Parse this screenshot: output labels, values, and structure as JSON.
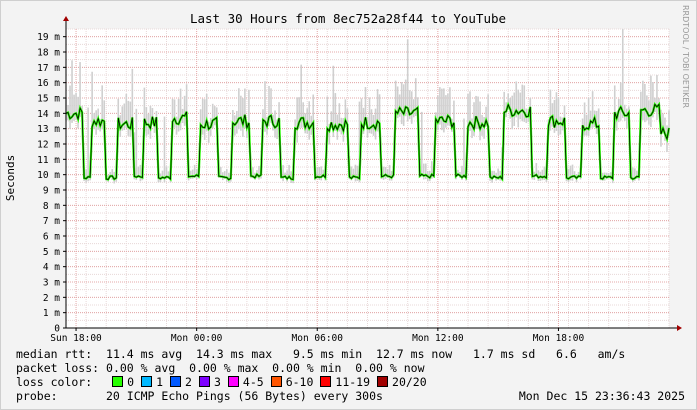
{
  "chart_data": {
    "type": "line",
    "title": "Last 30 Hours from 8ec752a28f44 to YouTube",
    "ylabel": "Seconds",
    "watermark": "RRDTOOL / TOBI OETIKER",
    "ylim": [
      0,
      0.0195
    ],
    "y_ticks": [
      {
        "value": 0,
        "label": "0"
      },
      {
        "value": 0.001,
        "label": "1 m"
      },
      {
        "value": 0.002,
        "label": "2 m"
      },
      {
        "value": 0.003,
        "label": "3 m"
      },
      {
        "value": 0.004,
        "label": "4 m"
      },
      {
        "value": 0.005,
        "label": "5 m"
      },
      {
        "value": 0.006,
        "label": "6 m"
      },
      {
        "value": 0.007,
        "label": "7 m"
      },
      {
        "value": 0.008,
        "label": "8 m"
      },
      {
        "value": 0.009,
        "label": "9 m"
      },
      {
        "value": 0.01,
        "label": "10 m"
      },
      {
        "value": 0.011,
        "label": "11 m"
      },
      {
        "value": 0.012,
        "label": "12 m"
      },
      {
        "value": 0.013,
        "label": "13 m"
      },
      {
        "value": 0.014,
        "label": "14 m"
      },
      {
        "value": 0.015,
        "label": "15 m"
      },
      {
        "value": 0.016,
        "label": "16 m"
      },
      {
        "value": 0.017,
        "label": "17 m"
      },
      {
        "value": 0.018,
        "label": "18 m"
      },
      {
        "value": 0.019,
        "label": "19 m"
      }
    ],
    "x_range_hours": [
      -30,
      0
    ],
    "x_ticks": [
      {
        "hours_before_end": 29.5,
        "label": "Sun 18:00"
      },
      {
        "hours_before_end": 23.5,
        "label": "Mon 00:00"
      },
      {
        "hours_before_end": 17.5,
        "label": "Mon 06:00"
      },
      {
        "hours_before_end": 11.5,
        "label": "Mon 12:00"
      },
      {
        "hours_before_end": 5.5,
        "label": "Mon 18:00"
      }
    ],
    "grid": true,
    "series_description": "median rtt oscillating between ~9.7 ms and ~14 ms with grey smoke (ping spread) up to ~19.5 ms",
    "segments": [
      {
        "start": 0.0,
        "end": 0.8,
        "level": 0.014
      },
      {
        "start": 0.8,
        "end": 1.3,
        "level": 0.0098
      },
      {
        "start": 1.3,
        "end": 2.0,
        "level": 0.0135
      },
      {
        "start": 2.0,
        "end": 2.6,
        "level": 0.0098
      },
      {
        "start": 2.6,
        "end": 3.4,
        "level": 0.0133
      },
      {
        "start": 3.4,
        "end": 3.9,
        "level": 0.0099
      },
      {
        "start": 3.9,
        "end": 4.6,
        "level": 0.0134
      },
      {
        "start": 4.6,
        "end": 5.2,
        "level": 0.0098
      },
      {
        "start": 5.2,
        "end": 6.0,
        "level": 0.0137
      },
      {
        "start": 6.0,
        "end": 6.6,
        "level": 0.0099
      },
      {
        "start": 6.6,
        "end": 7.5,
        "level": 0.0133
      },
      {
        "start": 7.5,
        "end": 8.2,
        "level": 0.0098
      },
      {
        "start": 8.2,
        "end": 9.1,
        "level": 0.0135
      },
      {
        "start": 9.1,
        "end": 9.7,
        "level": 0.0099
      },
      {
        "start": 9.7,
        "end": 10.6,
        "level": 0.0135
      },
      {
        "start": 10.6,
        "end": 11.3,
        "level": 0.0098
      },
      {
        "start": 11.3,
        "end": 12.3,
        "level": 0.0134
      },
      {
        "start": 12.3,
        "end": 12.9,
        "level": 0.0099
      },
      {
        "start": 12.9,
        "end": 14.0,
        "level": 0.0133
      },
      {
        "start": 14.0,
        "end": 14.6,
        "level": 0.0098
      },
      {
        "start": 14.6,
        "end": 15.6,
        "level": 0.0134
      },
      {
        "start": 15.6,
        "end": 16.3,
        "level": 0.0099
      },
      {
        "start": 16.3,
        "end": 17.5,
        "level": 0.014
      },
      {
        "start": 17.5,
        "end": 18.3,
        "level": 0.0099
      },
      {
        "start": 18.3,
        "end": 19.4,
        "level": 0.0135
      },
      {
        "start": 19.4,
        "end": 20.0,
        "level": 0.0099
      },
      {
        "start": 20.0,
        "end": 21.1,
        "level": 0.0134
      },
      {
        "start": 21.1,
        "end": 21.8,
        "level": 0.0098
      },
      {
        "start": 21.8,
        "end": 23.2,
        "level": 0.0142
      },
      {
        "start": 23.2,
        "end": 24.0,
        "level": 0.0099
      },
      {
        "start": 24.0,
        "end": 24.9,
        "level": 0.0135
      },
      {
        "start": 24.9,
        "end": 25.7,
        "level": 0.0098
      },
      {
        "start": 25.7,
        "end": 26.6,
        "level": 0.0133
      },
      {
        "start": 26.6,
        "end": 27.3,
        "level": 0.0098
      },
      {
        "start": 27.3,
        "end": 28.1,
        "level": 0.014
      },
      {
        "start": 28.1,
        "end": 28.6,
        "level": 0.0098
      },
      {
        "start": 28.6,
        "end": 29.6,
        "level": 0.0142
      },
      {
        "start": 29.6,
        "end": 30.0,
        "level": 0.0127
      }
    ]
  },
  "info": {
    "median_rtt_label": "median rtt:",
    "median_rtt_values": "  11.4 ms avg  14.3 ms max   9.5 ms min  12.7 ms now   1.7 ms sd   6.6   am/s",
    "packet_loss_label": "packet loss:",
    "packet_loss_values": " 0.00 % avg  0.00 % max  0.00 % min  0.00 % now",
    "loss_color_label": "loss color:",
    "loss_colors": [
      {
        "label": "0",
        "color": "#26ff00"
      },
      {
        "label": "1",
        "color": "#00b8ff"
      },
      {
        "label": "2",
        "color": "#0059ff"
      },
      {
        "label": "3",
        "color": "#7e00ff"
      },
      {
        "label": "4-5",
        "color": "#ff00ff"
      },
      {
        "label": "6-10",
        "color": "#ff5500"
      },
      {
        "label": "11-19",
        "color": "#ff0000"
      },
      {
        "label": "20/20",
        "color": "#a10000"
      }
    ],
    "probe_label": "probe:",
    "probe_value": "       20 ICMP Echo Pings (56 Bytes) every 300s",
    "date": "Mon Dec 15 23:36:43 2025"
  }
}
